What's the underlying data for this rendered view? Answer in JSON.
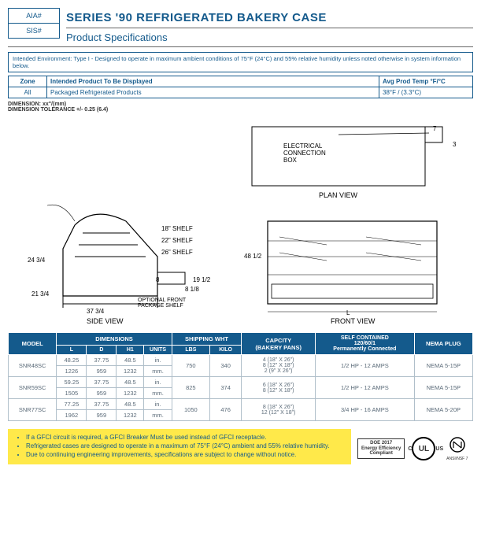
{
  "header": {
    "aia": "AIA#",
    "sis": "SIS#",
    "title": "SERIES '90 REFRIGERATED BAKERY CASE",
    "subtitle": "Product Specifications"
  },
  "env_text": "Intended Environment: Type I - Designed to operate in maximum ambient conditions of 75°F (24°C) and 55% relative humidity unless noted otherwise in system information below.",
  "zone": {
    "h1": "Zone",
    "h2": "Intended Product To Be Displayed",
    "h3": "Avg Prod Temp °F/°C",
    "r1": "All",
    "r2": "Packaged Refrigerated Products",
    "r3": "38°F / (3.3°C)"
  },
  "dim_note1": "DIMENSION: xx\"/(mm)",
  "dim_note2": "DIMENSION TOLERANCE +/- 0.25 (6.4)",
  "diagram": {
    "shelf18": "18\" SHELF",
    "shelf22": "22\" SHELF",
    "shelf26": "26\" SHELF",
    "d24": "24 3/4",
    "d21": "21 3/4",
    "d37": "37 3/4",
    "d8": "8",
    "d19": "19 1/2",
    "d81": "8 1/8",
    "opt": "OPTIONAL FRONT\nPACKAGE SHELF",
    "side": "SIDE VIEW",
    "d48": "48 1/2",
    "L": "L",
    "front": "FRONT VIEW",
    "d7": "7",
    "d3": "3",
    "ecb": "ELECTRICAL\nCONNECTION\nBOX",
    "plan": "PLAN VIEW"
  },
  "colors": {
    "brand": "#145a8c",
    "yellow": "#ffe94a",
    "cell": "#5a6a78",
    "border": "#b0bfca"
  },
  "spec_headers": {
    "model": "MODEL",
    "dim": "DIMENSIONS",
    "ship": "SHIPPING WHT",
    "cap": "CAPCITY\n(BAKERY PANS)",
    "self": "SELF CONTAINED\n120/60/1\nPermanently Connected",
    "nema": "NEMA PLUG",
    "L": "L",
    "D": "D",
    "H1": "H1",
    "units": "UNITS",
    "lbs": "LBS",
    "kilo": "KILO"
  },
  "spec_rows": [
    {
      "model": "SNR48SC",
      "L": [
        "48.25",
        "1226"
      ],
      "D": [
        "37.75",
        "959"
      ],
      "H": [
        "48.5",
        "1232"
      ],
      "u": [
        "in.",
        "mm."
      ],
      "lbs": "750",
      "kilo": "340",
      "cap": "4 (18\" X 26\")\n8 (12\" X 18\")\n2 (9\" X 26\")",
      "self": "1/2 HP - 12 AMPS",
      "nema": "NEMA 5-15P"
    },
    {
      "model": "SNR59SC",
      "L": [
        "59.25",
        "1505"
      ],
      "D": [
        "37.75",
        "959"
      ],
      "H": [
        "48.5",
        "1232"
      ],
      "u": [
        "in.",
        "mm."
      ],
      "lbs": "825",
      "kilo": "374",
      "cap": "6 (18\" X 26\")\n8 (12\" X 18\")",
      "self": "1/2 HP - 12 AMPS",
      "nema": "NEMA 5-15P"
    },
    {
      "model": "SNR77SC",
      "L": [
        "77.25",
        "1962"
      ],
      "D": [
        "37.75",
        "959"
      ],
      "H": [
        "48.5",
        "1232"
      ],
      "u": [
        "in.",
        "mm."
      ],
      "lbs": "1050",
      "kilo": "476",
      "cap": "8 (18\" X 26\")\n12 (12\" X 18\")",
      "self": "3/4 HP - 16 AMPS",
      "nema": "NEMA 5-20P"
    }
  ],
  "notes": [
    "If a GFCI circuit is required, a GFCI Breaker Must be used instead of GFCI receptacle.",
    "Refrigerated cases are designed to operate in a maximum of 75°F (24°C) ambient and 55% relative humidity.",
    "Due to continuing engineering improvements, specifications are subject to change without notice."
  ],
  "certs": {
    "doe": "DOE 2017\nEnergy Efficiency\nCompliant",
    "ul_c": "C",
    "ul": "UL",
    "ul_us": "US",
    "nsf": "ANSI/NSF 7"
  }
}
